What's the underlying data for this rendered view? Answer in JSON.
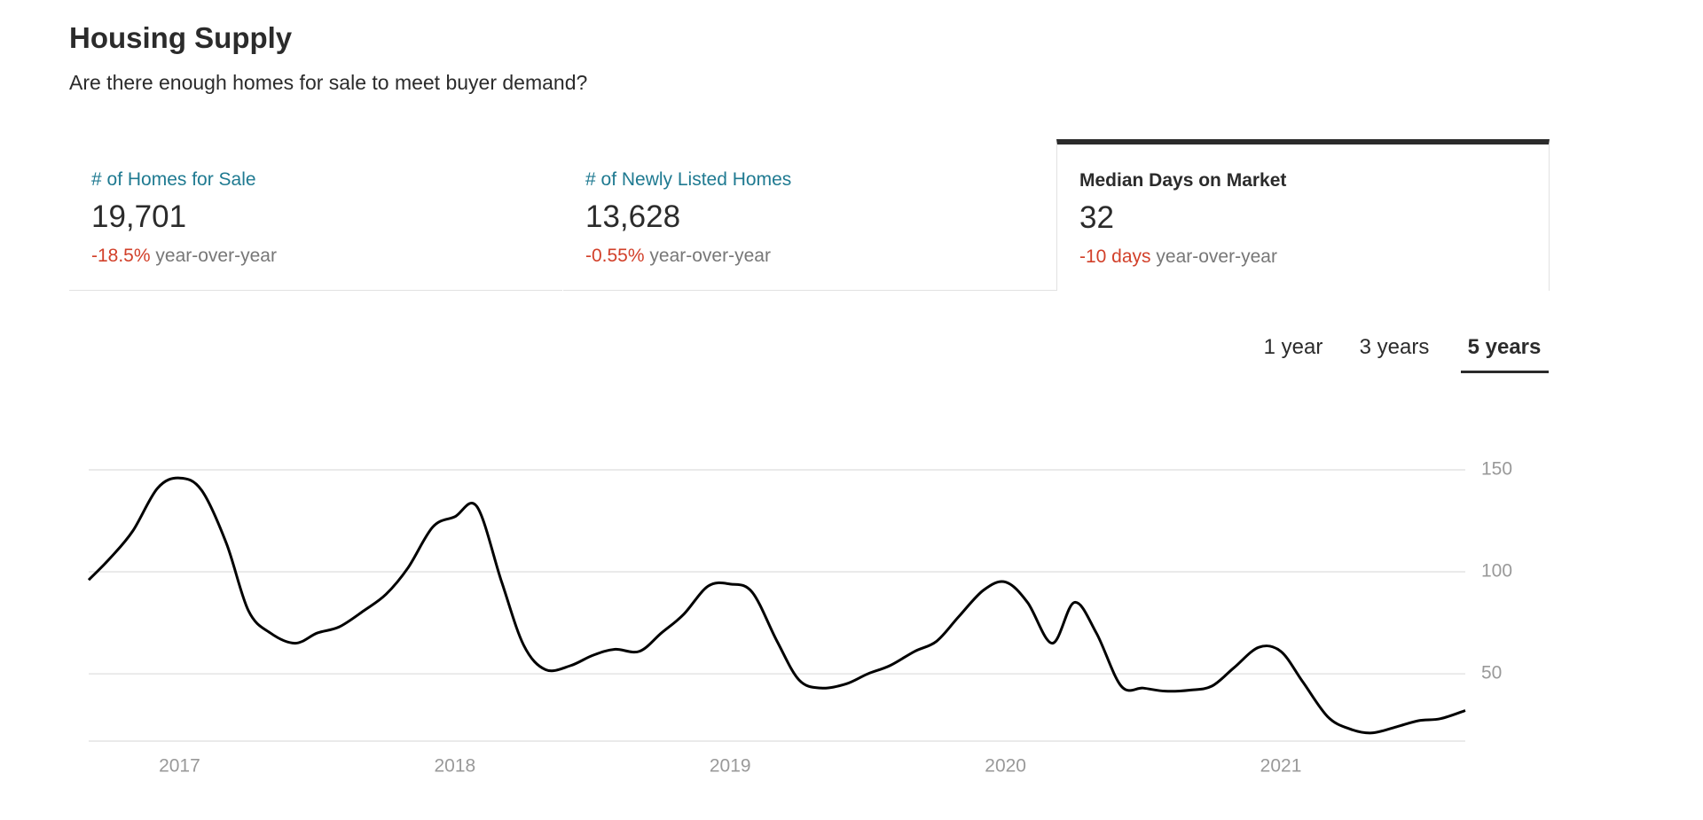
{
  "header": {
    "title": "Housing Supply",
    "subtitle": "Are there enough homes for sale to meet buyer demand?"
  },
  "cards": {
    "selected": 2,
    "items": [
      {
        "label": "# of Homes for Sale",
        "value": "19,701",
        "change": "-18.5%",
        "suffix": "year-over-year"
      },
      {
        "label": "# of Newly Listed Homes",
        "value": "13,628",
        "change": "-0.55%",
        "suffix": "year-over-year"
      },
      {
        "label": "Median Days on Market",
        "value": "32",
        "change": "-10 days",
        "suffix": "year-over-year"
      }
    ]
  },
  "tabs": {
    "selected": 2,
    "items": [
      "1 year",
      "3 years",
      "5 years"
    ]
  },
  "chart_data": {
    "type": "line",
    "color": "#000000",
    "grid": true,
    "x": [
      2016.67,
      2016.75,
      2016.83,
      2016.92,
      2017,
      2017.08,
      2017.17,
      2017.25,
      2017.33,
      2017.42,
      2017.5,
      2017.58,
      2017.67,
      2017.75,
      2017.83,
      2017.92,
      2018,
      2018.08,
      2018.17,
      2018.25,
      2018.33,
      2018.42,
      2018.5,
      2018.58,
      2018.67,
      2018.75,
      2018.83,
      2018.92,
      2019,
      2019.08,
      2019.17,
      2019.25,
      2019.33,
      2019.42,
      2019.5,
      2019.58,
      2019.67,
      2019.75,
      2019.83,
      2019.92,
      2020,
      2020.08,
      2020.17,
      2020.25,
      2020.33,
      2020.42,
      2020.5,
      2020.58,
      2020.67,
      2020.75,
      2020.83,
      2020.92,
      2021,
      2021.08,
      2021.17,
      2021.25,
      2021.33,
      2021.42,
      2021.5,
      2021.58,
      2021.67
    ],
    "values": [
      96,
      107,
      120,
      141,
      146,
      140,
      114,
      81,
      70,
      65,
      70,
      73,
      81,
      89,
      102,
      122,
      127,
      132,
      95,
      64,
      52,
      54,
      59,
      62,
      61,
      70,
      79,
      93,
      94,
      90,
      66,
      47,
      43,
      45,
      50,
      54,
      61,
      66,
      78,
      91,
      95,
      85,
      65,
      85,
      70,
      44,
      43,
      41.5,
      42,
      44,
      53,
      63,
      61,
      46,
      29,
      23,
      21,
      24,
      27,
      28,
      32
    ],
    "xlim": [
      2016.67,
      2021.67
    ],
    "xticks": [
      2017,
      2018,
      2019,
      2020,
      2021
    ],
    "ylim": [
      17,
      150
    ],
    "yticks": [
      50,
      100,
      150
    ]
  }
}
